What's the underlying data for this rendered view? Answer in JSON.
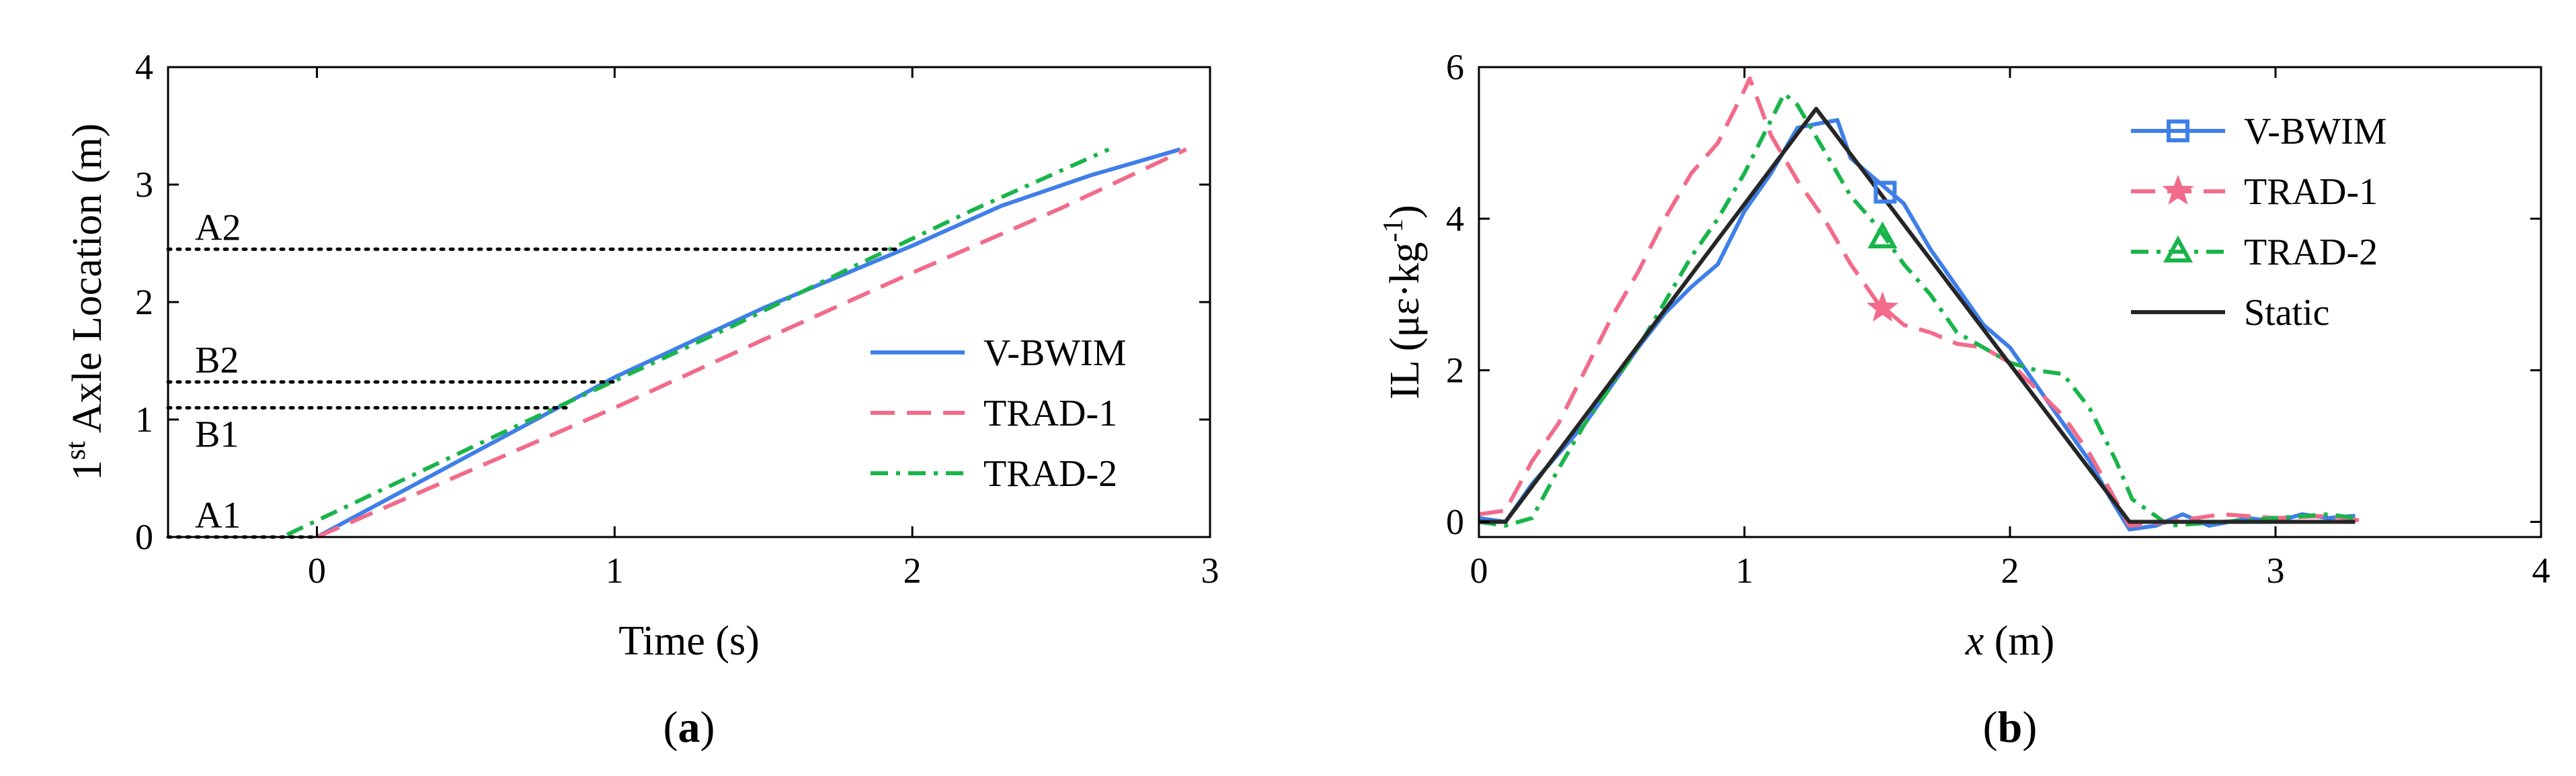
{
  "chart_data": [
    {
      "panel_label": "a",
      "type": "line",
      "xlabel": "Time (s)",
      "ylabel_prefix": "1",
      "ylabel_sup": "st",
      "ylabel_rest": " Axle Location (m)",
      "xlim": [
        -0.5,
        3
      ],
      "ylim": [
        0,
        4
      ],
      "xticks": [
        0,
        1,
        2,
        3
      ],
      "yticks": [
        0,
        1,
        2,
        3,
        4
      ],
      "legend": [
        "V-BWIM",
        "TRAD-1",
        "TRAD-2"
      ],
      "series": [
        {
          "name": "V-BWIM",
          "color": "#3f7fe8",
          "style": "solid",
          "x": [
            0,
            0.5,
            1.0,
            1.5,
            2.0,
            2.3,
            2.6,
            2.9
          ],
          "y": [
            0,
            0.68,
            1.36,
            1.95,
            2.48,
            2.82,
            3.08,
            3.3
          ]
        },
        {
          "name": "TRAD-1",
          "color": "#f26b8a",
          "style": "dash",
          "x": [
            0,
            0.5,
            1.0,
            1.5,
            2.0,
            2.5,
            2.92
          ],
          "y": [
            0,
            0.55,
            1.1,
            1.68,
            2.25,
            2.8,
            3.3
          ]
        },
        {
          "name": "TRAD-2",
          "color": "#19b54a",
          "style": "dashdot",
          "x": [
            -0.1,
            0.3,
            0.7,
            1.0,
            1.4,
            1.8,
            2.2,
            2.66
          ],
          "y": [
            0.02,
            0.5,
            0.98,
            1.33,
            1.8,
            2.3,
            2.78,
            3.3
          ]
        }
      ],
      "reference_lines": [
        {
          "label": "A1",
          "y": 0.0,
          "x_end": 0
        },
        {
          "label": "B1",
          "y": 1.1,
          "x_end": 0.85
        },
        {
          "label": "B2",
          "y": 1.32,
          "x_end": 1.0
        },
        {
          "label": "A2",
          "y": 2.45,
          "x_end": 1.95
        }
      ]
    },
    {
      "panel_label": "b",
      "type": "line",
      "xlabel_var": "x",
      "xlabel_rest": " (m)",
      "ylabel_main": "IL (με·kg",
      "ylabel_sup": "-1",
      "ylabel_close": ")",
      "xlim": [
        0,
        4
      ],
      "ylim": [
        -0.2,
        6
      ],
      "xticks": [
        0,
        1,
        2,
        3,
        4
      ],
      "yticks": [
        0,
        2,
        4,
        6
      ],
      "legend": [
        "V-BWIM",
        "TRAD-1",
        "TRAD-2",
        "Static"
      ],
      "series": [
        {
          "name": "V-BWIM",
          "color": "#3f7fe8",
          "style": "solid",
          "marker": "square",
          "marker_at": [
            1.53,
            4.35
          ],
          "x": [
            0,
            0.1,
            0.2,
            0.3,
            0.4,
            0.5,
            0.6,
            0.7,
            0.8,
            0.9,
            1.0,
            1.1,
            1.2,
            1.27,
            1.35,
            1.4,
            1.5,
            1.6,
            1.7,
            1.8,
            1.9,
            2.0,
            2.1,
            2.2,
            2.3,
            2.38,
            2.45,
            2.55,
            2.65,
            2.75,
            2.9,
            3.0,
            3.1,
            3.2,
            3.3
          ],
          "y": [
            0.05,
            0.0,
            0.5,
            0.9,
            1.3,
            1.8,
            2.3,
            2.75,
            3.1,
            3.4,
            4.1,
            4.6,
            5.2,
            5.25,
            5.3,
            4.8,
            4.5,
            4.2,
            3.6,
            3.1,
            2.6,
            2.3,
            1.8,
            1.3,
            0.8,
            0.3,
            -0.1,
            -0.05,
            0.1,
            -0.05,
            0.05,
            0.0,
            0.1,
            0.05,
            0.08
          ]
        },
        {
          "name": "TRAD-1",
          "color": "#f26b8a",
          "style": "dash",
          "marker": "star",
          "marker_at": [
            1.52,
            2.82
          ],
          "x": [
            0,
            0.1,
            0.2,
            0.3,
            0.4,
            0.5,
            0.6,
            0.7,
            0.8,
            0.9,
            1.0,
            1.02,
            1.1,
            1.2,
            1.3,
            1.4,
            1.5,
            1.6,
            1.7,
            1.8,
            1.9,
            2.0,
            2.1,
            2.2,
            2.3,
            2.38,
            2.45,
            2.6,
            2.8,
            3.0,
            3.2,
            3.35
          ],
          "y": [
            0.1,
            0.15,
            0.8,
            1.3,
            2.0,
            2.7,
            3.3,
            4.0,
            4.6,
            5.0,
            5.7,
            5.85,
            5.1,
            4.5,
            4.0,
            3.4,
            2.9,
            2.6,
            2.5,
            2.35,
            2.3,
            2.1,
            1.75,
            1.4,
            0.9,
            0.4,
            -0.05,
            0.0,
            0.1,
            0.05,
            0.08,
            0.0
          ]
        },
        {
          "name": "TRAD-2",
          "color": "#19b54a",
          "style": "dashdot",
          "marker": "triangle",
          "marker_at": [
            1.52,
            3.75
          ],
          "x": [
            0,
            0.1,
            0.2,
            0.3,
            0.4,
            0.5,
            0.6,
            0.7,
            0.8,
            0.9,
            1.0,
            1.1,
            1.15,
            1.2,
            1.3,
            1.4,
            1.5,
            1.6,
            1.7,
            1.8,
            1.9,
            2.0,
            2.1,
            2.2,
            2.3,
            2.4,
            2.46,
            2.6,
            2.8,
            3.0,
            3.2,
            3.3
          ],
          "y": [
            0.0,
            -0.05,
            0.05,
            0.7,
            1.3,
            1.8,
            2.3,
            2.9,
            3.5,
            4.0,
            4.6,
            5.3,
            5.65,
            5.5,
            4.9,
            4.3,
            3.9,
            3.4,
            3.0,
            2.5,
            2.3,
            2.1,
            2.0,
            1.95,
            1.5,
            0.8,
            0.3,
            -0.05,
            0.0,
            0.05,
            0.1,
            0.05
          ]
        },
        {
          "name": "Static",
          "color": "#262626",
          "style": "solid",
          "marker": "none",
          "x": [
            0,
            0.1,
            1.27,
            2.45,
            2.55,
            3.3
          ],
          "y": [
            0,
            0,
            5.45,
            0,
            0,
            0
          ]
        }
      ]
    }
  ]
}
